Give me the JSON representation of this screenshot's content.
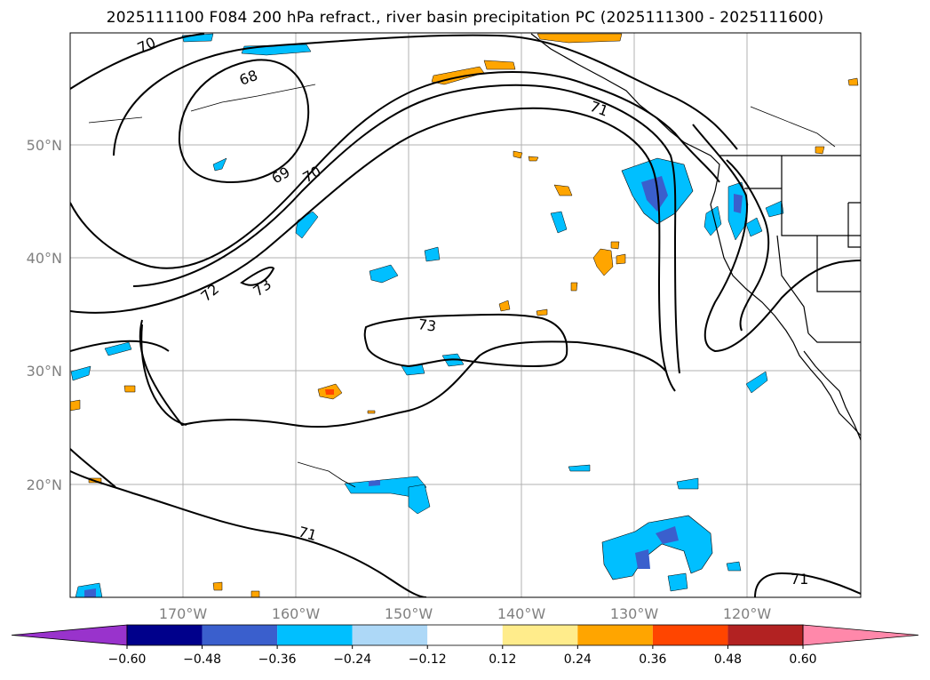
{
  "title": "2025111100 F084 200 hPa refract., river basin precipitation PC (2025111300 - 2025111600)",
  "map": {
    "lat_ticks": [
      "50°N",
      "40°N",
      "30°N",
      "20°N"
    ],
    "lon_ticks": [
      "170°W",
      "160°W",
      "150°W",
      "140°W",
      "130°W",
      "120°W"
    ],
    "gridlines": true,
    "contour_labels": [
      "70",
      "68",
      "71",
      "69",
      "70",
      "72",
      "73",
      "73",
      "71",
      "71"
    ]
  },
  "colorbar": {
    "tick_labels": [
      "−0.60",
      "−0.48",
      "−0.36",
      "−0.24",
      "−0.12",
      "0.12",
      "0.24",
      "0.36",
      "0.48",
      "0.60"
    ],
    "colors": [
      "#9933cc",
      "#00008b",
      "#3a5fcd",
      "#00bfff",
      "#add8f7",
      "#ffffff",
      "#ffec8b",
      "#ffa500",
      "#ff4500",
      "#b22222",
      "#ff88aa"
    ],
    "extend": "both"
  }
}
